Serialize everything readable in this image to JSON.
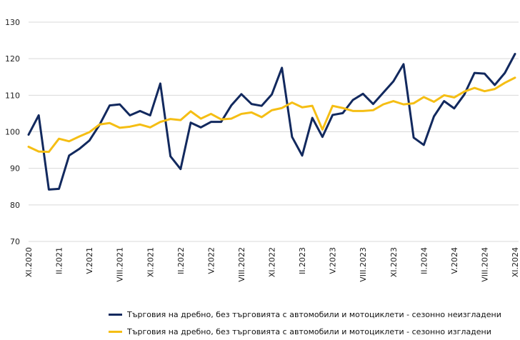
{
  "chart_data": {
    "type": "line",
    "title": "",
    "xlabel": "",
    "ylabel": "",
    "ylim": [
      70,
      130
    ],
    "yticks": [
      70,
      80,
      90,
      100,
      110,
      120,
      130
    ],
    "grid": "horizontal",
    "legend_position": "bottom",
    "x_tick_labels": [
      "XI.2020",
      "II.2021",
      "V.2021",
      "VIII.2021",
      "XI.2021",
      "II.2022",
      "V.2022",
      "VIII.2022",
      "XI.2022",
      "II.2023",
      "V.2023",
      "VIII.2023",
      "XI.2023",
      "II.2024",
      "V.2024",
      "VIII.2024",
      "XI.2024"
    ],
    "x": [
      "XI.2020",
      "XII.2020",
      "I.2021",
      "II.2021",
      "III.2021",
      "IV.2021",
      "V.2021",
      "VI.2021",
      "VII.2021",
      "VIII.2021",
      "IX.2021",
      "X.2021",
      "XI.2021",
      "XII.2021",
      "I.2022",
      "II.2022",
      "III.2022",
      "IV.2022",
      "V.2022",
      "VI.2022",
      "VII.2022",
      "VIII.2022",
      "IX.2022",
      "X.2022",
      "XI.2022",
      "XII.2022",
      "I.2023",
      "II.2023",
      "III.2023",
      "IV.2023",
      "V.2023",
      "VI.2023",
      "VII.2023",
      "VIII.2023",
      "IX.2023",
      "X.2023",
      "XI.2023",
      "XII.2023",
      "I.2024",
      "II.2024",
      "III.2024",
      "IV.2024",
      "V.2024",
      "VI.2024",
      "VII.2024",
      "VIII.2024",
      "IX.2024",
      "X.2024",
      "XI.2024"
    ],
    "series": [
      {
        "name": "Търговия на дребно, без търговията с автомобили и мотоциклети - сезонно неизгладени",
        "color": "#12295e",
        "values": [
          99.2,
          104.5,
          84.2,
          84.4,
          93.5,
          95.3,
          97.6,
          101.9,
          107.2,
          107.5,
          104.5,
          105.7,
          104.5,
          113.2,
          93.3,
          89.8,
          102.5,
          101.2,
          102.7,
          102.7,
          107.2,
          110.3,
          107.6,
          107.1,
          110.2,
          117.5,
          98.6,
          93.5,
          103.8,
          98.6,
          104.6,
          105.1,
          108.7,
          110.4,
          107.6,
          110.7,
          113.8,
          118.5,
          98.4,
          96.4,
          104.2,
          108.4,
          106.4,
          110.2,
          116.1,
          115.9,
          112.8,
          116.1,
          121.3
        ]
      },
      {
        "name": "Търговия на дребно, без търговията с автомобили и мотоциклети - сезонно изгладени",
        "color": "#f5be14",
        "values": [
          95.9,
          94.6,
          94.5,
          98.1,
          97.4,
          98.7,
          99.9,
          102.0,
          102.4,
          101.1,
          101.4,
          102.0,
          101.2,
          102.7,
          103.5,
          103.2,
          105.6,
          103.6,
          104.9,
          103.4,
          103.6,
          104.9,
          105.3,
          104.0,
          105.9,
          106.5,
          108.0,
          106.7,
          107.1,
          100.6,
          107.1,
          106.5,
          105.7,
          105.7,
          105.9,
          107.5,
          108.4,
          107.5,
          107.8,
          109.5,
          108.2,
          110.0,
          109.4,
          111.0,
          112.0,
          111.1,
          111.7,
          113.4,
          114.8
        ]
      }
    ]
  }
}
